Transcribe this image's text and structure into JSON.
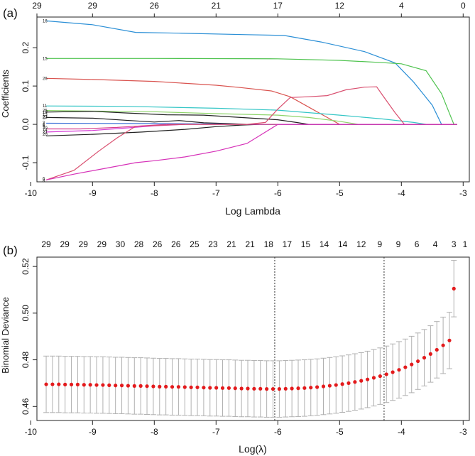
{
  "chart_data": [
    {
      "panel_label": "(a)",
      "type": "line",
      "xlabel": "Log Lambda",
      "ylabel": "Coefficients",
      "xlim": [
        -9.9,
        -2.9
      ],
      "ylim": [
        -0.15,
        0.28
      ],
      "xticks": [
        "-10",
        "-9",
        "-8",
        "-7",
        "-6",
        "-5",
        "-4",
        "-3"
      ],
      "xtick_values": [
        -10,
        -9,
        -8,
        -7,
        -6,
        -5,
        -4,
        -3
      ],
      "yticks": [
        "-0.1",
        "0.0",
        "0.1",
        "0.2"
      ],
      "ytick_values": [
        -0.1,
        0.0,
        0.1,
        0.2
      ],
      "top_axis_labels": [
        "29",
        "29",
        "26",
        "21",
        "17",
        "12",
        "4",
        "0"
      ],
      "top_axis_values": [
        -9.95,
        -9.0,
        -8.0,
        -7.0,
        -6.0,
        -5.0,
        -4.0,
        -3.0
      ],
      "series": [
        {
          "label": "16",
          "color": "#2b8fd6",
          "points": [
            [
              -9.75,
              0.27
            ],
            [
              -9,
              0.26
            ],
            [
              -8.3,
              0.24
            ],
            [
              -7.6,
              0.238
            ],
            [
              -6.5,
              0.234
            ],
            [
              -5.9,
              0.232
            ],
            [
              -5.3,
              0.215
            ],
            [
              -4.6,
              0.19
            ],
            [
              -4.1,
              0.16
            ],
            [
              -3.8,
              0.11
            ],
            [
              -3.5,
              0.05
            ],
            [
              -3.35,
              0.0
            ],
            [
              -3.1,
              0.0
            ]
          ]
        },
        {
          "label": "15",
          "color": "#4fc34f",
          "points": [
            [
              -9.75,
              0.172
            ],
            [
              -8,
              0.172
            ],
            [
              -6,
              0.171
            ],
            [
              -5,
              0.167
            ],
            [
              -4.4,
              0.162
            ],
            [
              -4.0,
              0.158
            ],
            [
              -3.6,
              0.14
            ],
            [
              -3.35,
              0.08
            ],
            [
              -3.2,
              0.02
            ],
            [
              -3.15,
              0.0
            ]
          ]
        },
        {
          "label": "26",
          "color": "#d9534f",
          "points": [
            [
              -9.75,
              0.12
            ],
            [
              -9,
              0.117
            ],
            [
              -8,
              0.112
            ],
            [
              -7,
              0.102
            ],
            [
              -6.6,
              0.096
            ],
            [
              -6.1,
              0.087
            ],
            [
              -5.8,
              0.072
            ],
            [
              -5.5,
              0.045
            ],
            [
              -5.2,
              0.018
            ],
            [
              -5.0,
              0.0
            ]
          ]
        },
        {
          "label": "11",
          "color": "#35c6c6",
          "points": [
            [
              -9.75,
              0.048
            ],
            [
              -8.5,
              0.047
            ],
            [
              -7,
              0.042
            ],
            [
              -6,
              0.037
            ],
            [
              -5,
              0.024
            ],
            [
              -4.3,
              0.014
            ],
            [
              -3.8,
              0.005
            ],
            [
              -3.6,
              0.0
            ]
          ]
        },
        {
          "label": "",
          "color": "#8ed46a",
          "points": [
            [
              -9.75,
              0.036
            ],
            [
              -8,
              0.033
            ],
            [
              -7,
              0.028
            ],
            [
              -6,
              0.024
            ],
            [
              -5.5,
              0.018
            ],
            [
              -5,
              0.008
            ],
            [
              -4.7,
              0.0
            ]
          ]
        },
        {
          "label": "",
          "color": "#222222",
          "points": [
            [
              -9.75,
              0.032
            ],
            [
              -9,
              0.034
            ],
            [
              -8.5,
              0.03
            ],
            [
              -7.8,
              0.025
            ],
            [
              -7.2,
              0.024
            ],
            [
              -6.6,
              0.018
            ],
            [
              -6.0,
              0.012
            ],
            [
              -5.7,
              0.005
            ],
            [
              -5.5,
              0.0
            ]
          ]
        },
        {
          "label": "",
          "color": "#222222",
          "points": [
            [
              -9.75,
              0.018
            ],
            [
              -9,
              0.016
            ],
            [
              -8.4,
              0.01
            ],
            [
              -8.0,
              0.006
            ],
            [
              -7.6,
              0.01
            ],
            [
              -7.2,
              0.004
            ],
            [
              -6.8,
              0.002
            ],
            [
              -6.5,
              0.0
            ]
          ]
        },
        {
          "label": "",
          "color": "#222222",
          "points": [
            [
              -9.75,
              -0.03
            ],
            [
              -9,
              -0.026
            ],
            [
              -8.2,
              -0.02
            ],
            [
              -7.5,
              -0.013
            ],
            [
              -7.0,
              -0.006
            ],
            [
              -6.6,
              -0.002
            ],
            [
              -6.3,
              0.0
            ]
          ]
        },
        {
          "label": "",
          "color": "#d63bd6",
          "points": [
            [
              -9.75,
              -0.02
            ],
            [
              -9,
              -0.016
            ],
            [
              -8.5,
              -0.01
            ],
            [
              -8.0,
              -0.004
            ],
            [
              -7.5,
              0.0
            ]
          ]
        },
        {
          "label": "",
          "color": "#3b6fd6",
          "points": [
            [
              -9.75,
              0.003
            ],
            [
              -8,
              0.002
            ],
            [
              -7,
              0.001
            ],
            [
              -6.6,
              0.0
            ]
          ]
        },
        {
          "label": "",
          "color": "#d63b8c",
          "points": [
            [
              -9.75,
              -0.012
            ],
            [
              -9.2,
              -0.012
            ],
            [
              -8.6,
              -0.008
            ],
            [
              -8.2,
              -0.004
            ],
            [
              -7.8,
              0.0
            ]
          ]
        },
        {
          "label": "6",
          "color": "#d94f6f",
          "points": [
            [
              -9.75,
              -0.145
            ],
            [
              -9.3,
              -0.12
            ],
            [
              -8.9,
              -0.07
            ],
            [
              -8.6,
              -0.035
            ],
            [
              -8.3,
              -0.005
            ],
            [
              -7.5,
              0.0
            ],
            [
              -6.5,
              0.0
            ],
            [
              -6.2,
              0.005
            ],
            [
              -6.0,
              0.04
            ],
            [
              -5.8,
              0.07
            ],
            [
              -5.5,
              0.072
            ],
            [
              -5.2,
              0.075
            ],
            [
              -4.9,
              0.09
            ],
            [
              -4.6,
              0.097
            ],
            [
              -4.4,
              0.098
            ],
            [
              -4.3,
              0.075
            ],
            [
              -4.1,
              0.03
            ],
            [
              -3.95,
              0.0
            ]
          ]
        },
        {
          "label": "8",
          "color": "#d631b8",
          "points": [
            [
              -9.75,
              -0.145
            ],
            [
              -9.3,
              -0.13
            ],
            [
              -8.8,
              -0.115
            ],
            [
              -8.3,
              -0.1
            ],
            [
              -8.0,
              -0.095
            ],
            [
              -7.5,
              -0.085
            ],
            [
              -7.0,
              -0.07
            ],
            [
              -6.5,
              -0.05
            ],
            [
              -6.2,
              -0.02
            ],
            [
              -6.0,
              0.0
            ],
            [
              -3.2,
              0.0
            ]
          ]
        }
      ],
      "side_labels": [
        {
          "text": "16",
          "y": 0.27
        },
        {
          "text": "15",
          "y": 0.172
        },
        {
          "text": "26",
          "y": 0.12
        },
        {
          "text": "11",
          "y": 0.048
        },
        {
          "text": "25",
          "y": 0.036
        },
        {
          "text": "19",
          "y": 0.032
        },
        {
          "text": "13",
          "y": 0.026
        },
        {
          "text": "22",
          "y": 0.02
        },
        {
          "text": "27",
          "y": 0.018
        },
        {
          "text": "3",
          "y": 0.004
        },
        {
          "text": "1",
          "y": 0.0
        },
        {
          "text": "9",
          "y": -0.004
        },
        {
          "text": "30",
          "y": -0.009
        },
        {
          "text": "14",
          "y": -0.015
        },
        {
          "text": "21",
          "y": -0.02
        },
        {
          "text": "20",
          "y": -0.026
        },
        {
          "text": "6",
          "y": -0.142
        },
        {
          "text": "8",
          "y": -0.147
        }
      ]
    },
    {
      "panel_label": "(b)",
      "type": "scatter",
      "xlabel": "Log(λ)",
      "ylabel": "Binomial Deviance",
      "xlim": [
        -9.9,
        -2.9
      ],
      "ylim": [
        0.454,
        0.524
      ],
      "xticks": [
        "-10",
        "-9",
        "-8",
        "-7",
        "-6",
        "-5",
        "-4",
        "-3"
      ],
      "xtick_values": [
        -10,
        -9,
        -8,
        -7,
        -6,
        -5,
        -4,
        -3
      ],
      "yticks": [
        "0.46",
        "0.48",
        "0.50",
        "0.52"
      ],
      "ytick_values": [
        0.46,
        0.48,
        0.5,
        0.52
      ],
      "top_axis_labels": [
        "29",
        "29",
        "29",
        "29",
        "30",
        "28",
        "26",
        "26",
        "25",
        "23",
        "21",
        "21",
        "18",
        "17",
        "15",
        "14",
        "14",
        "12",
        "9",
        "9",
        "6",
        "4",
        "3",
        "1"
      ],
      "top_axis_values": [
        -9.75,
        -9.45,
        -9.15,
        -8.85,
        -8.55,
        -8.25,
        -7.95,
        -7.65,
        -7.35,
        -7.05,
        -6.75,
        -6.45,
        -6.15,
        -5.85,
        -5.55,
        -5.25,
        -4.95,
        -4.65,
        -4.35,
        -4.05,
        -3.75,
        -3.45,
        -3.15,
        -2.9
      ],
      "vlines": [
        -6.05,
        -4.28
      ],
      "points": {
        "x": [
          -9.75,
          -9.648,
          -9.546,
          -9.444,
          -9.342,
          -9.24,
          -9.138,
          -9.036,
          -8.934,
          -8.832,
          -8.73,
          -8.628,
          -8.526,
          -8.424,
          -8.322,
          -8.22,
          -8.118,
          -8.016,
          -7.914,
          -7.812,
          -7.71,
          -7.608,
          -7.506,
          -7.404,
          -7.302,
          -7.2,
          -7.098,
          -6.996,
          -6.894,
          -6.792,
          -6.69,
          -6.588,
          -6.486,
          -6.384,
          -6.282,
          -6.18,
          -6.078,
          -5.976,
          -5.874,
          -5.772,
          -5.67,
          -5.568,
          -5.466,
          -5.364,
          -5.262,
          -5.16,
          -5.058,
          -4.956,
          -4.854,
          -4.752,
          -4.65,
          -4.548,
          -4.446,
          -4.344,
          -4.242,
          -4.14,
          -4.038,
          -3.936,
          -3.834,
          -3.732,
          -3.63,
          -3.528,
          -3.426,
          -3.324,
          -3.222,
          -3.15
        ],
        "y": [
          0.4695,
          0.4695,
          0.4695,
          0.4694,
          0.4694,
          0.4694,
          0.4693,
          0.4693,
          0.4692,
          0.4692,
          0.4691,
          0.469,
          0.469,
          0.4689,
          0.4688,
          0.4688,
          0.4687,
          0.4686,
          0.4685,
          0.4685,
          0.4684,
          0.4684,
          0.4683,
          0.4682,
          0.4682,
          0.4681,
          0.468,
          0.468,
          0.4679,
          0.4679,
          0.4678,
          0.4677,
          0.4677,
          0.4676,
          0.4676,
          0.4675,
          0.4675,
          0.4675,
          0.4676,
          0.4677,
          0.4678,
          0.4679,
          0.4681,
          0.4683,
          0.4686,
          0.4689,
          0.4692,
          0.4696,
          0.47,
          0.4705,
          0.471,
          0.4716,
          0.4723,
          0.473,
          0.4738,
          0.4747,
          0.4757,
          0.4768,
          0.478,
          0.4794,
          0.4809,
          0.4825,
          0.4843,
          0.4862,
          0.4883,
          0.5105
        ],
        "se": [
          0.0121,
          0.0121,
          0.0121,
          0.0121,
          0.0121,
          0.0121,
          0.0121,
          0.0121,
          0.0121,
          0.0121,
          0.0121,
          0.0121,
          0.0121,
          0.0121,
          0.0121,
          0.0121,
          0.0121,
          0.0121,
          0.0121,
          0.0121,
          0.0121,
          0.0121,
          0.0121,
          0.0121,
          0.0121,
          0.0121,
          0.0121,
          0.0121,
          0.0121,
          0.0121,
          0.0121,
          0.0121,
          0.0121,
          0.0121,
          0.0121,
          0.0121,
          0.0121,
          0.0121,
          0.0121,
          0.0121,
          0.0121,
          0.0121,
          0.0121,
          0.0121,
          0.0121,
          0.0121,
          0.0121,
          0.0121,
          0.0121,
          0.0121,
          0.0121,
          0.0121,
          0.0121,
          0.0121,
          0.0121,
          0.0121,
          0.0121,
          0.0121,
          0.0121,
          0.0121,
          0.0121,
          0.0121,
          0.0121,
          0.0121,
          0.0121,
          0.0121
        ]
      },
      "point_color": "#e31a1c",
      "errorbar_color": "#b0b0b0"
    }
  ]
}
